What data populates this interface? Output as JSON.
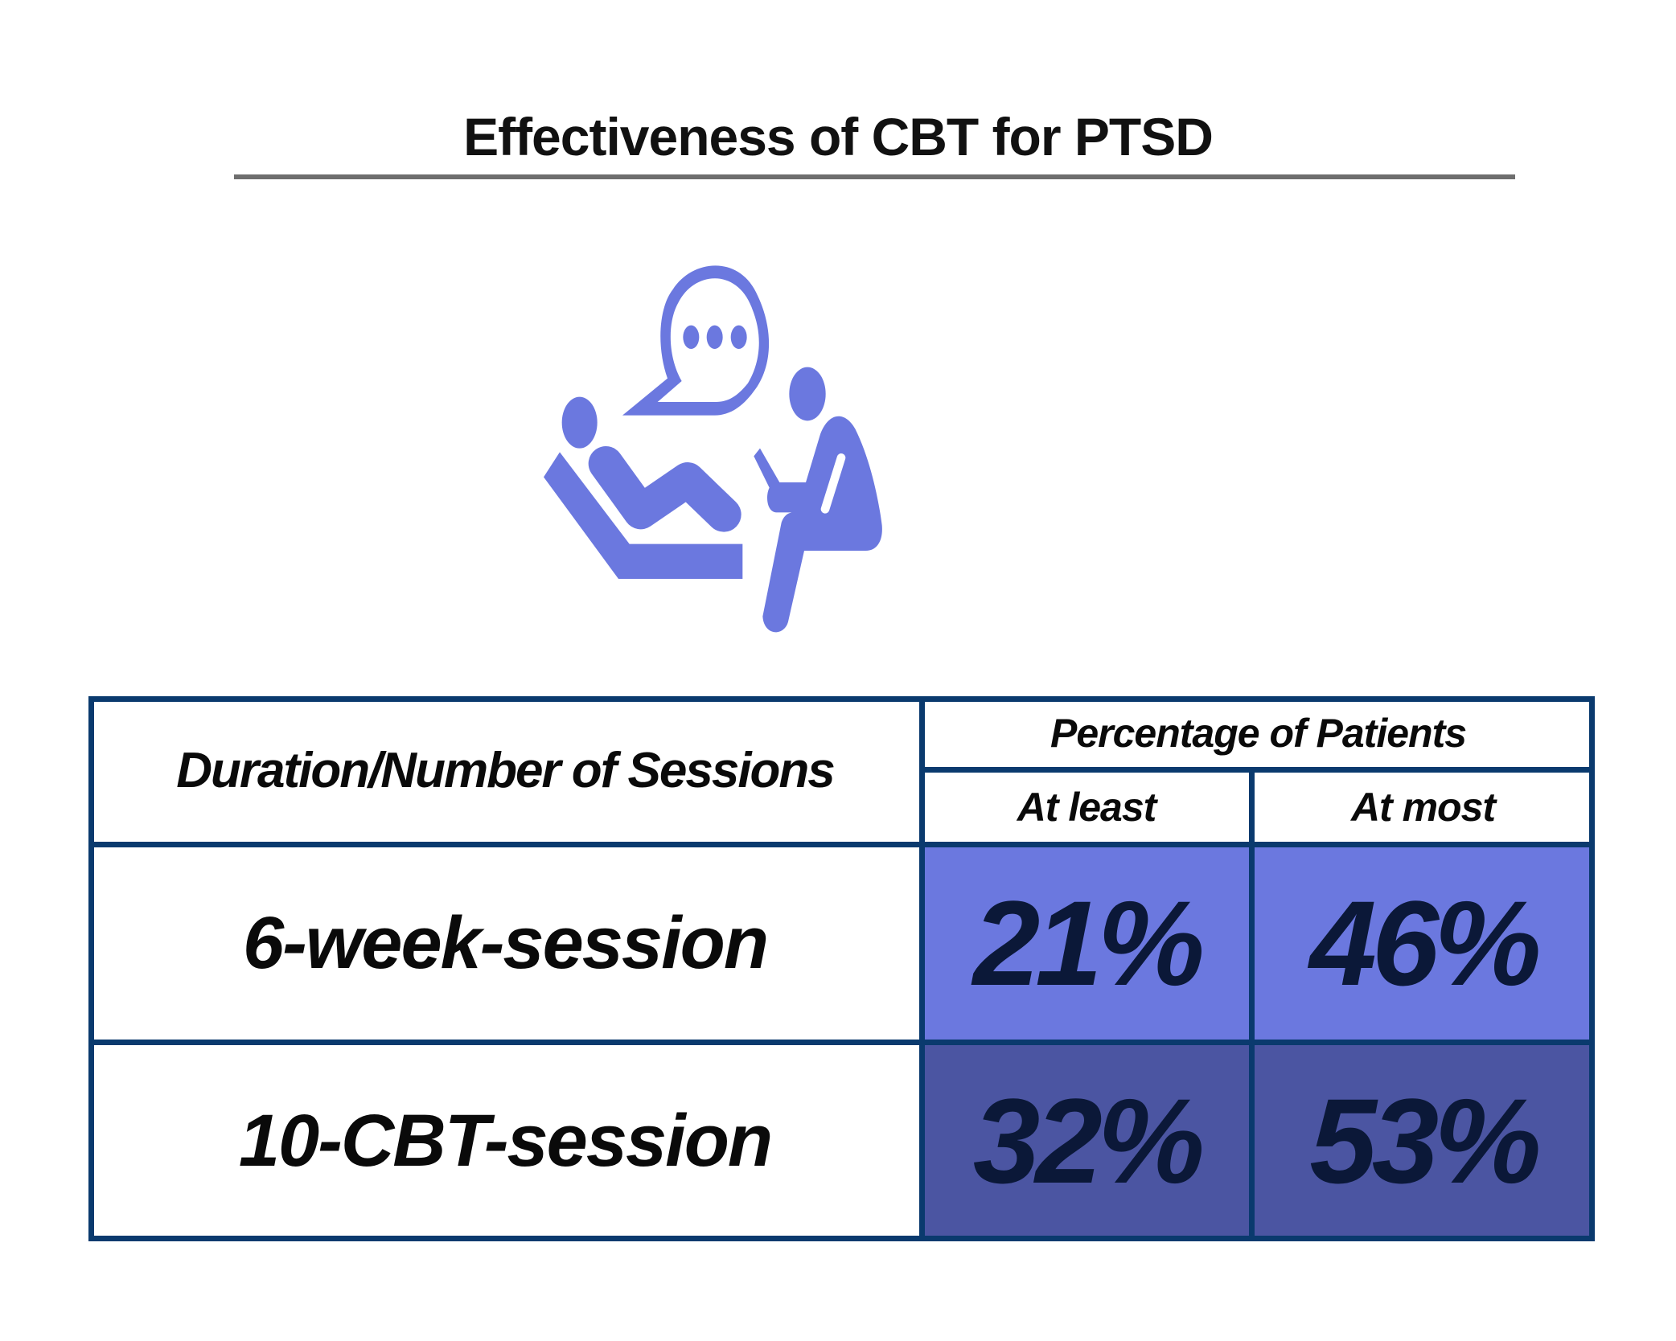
{
  "title": "Effectiveness of CBT for PTSD",
  "icon": "therapy-session-icon",
  "colors": {
    "icon": "#6b78df",
    "row_light": "#6b78df",
    "row_dark": "#4b55a2",
    "border": "#0a3a6e",
    "value_text": "#0b1838",
    "rule": "#6e6e6e"
  },
  "table": {
    "row_header": "Duration/Number of Sessions",
    "group_header": "Percentage of Patients",
    "columns": [
      "At least",
      "At most"
    ],
    "rows": [
      {
        "label": "6-week-session",
        "at_least": "21%",
        "at_most": "46%"
      },
      {
        "label": "10-CBT-session",
        "at_least": "32%",
        "at_most": "53%"
      }
    ]
  }
}
